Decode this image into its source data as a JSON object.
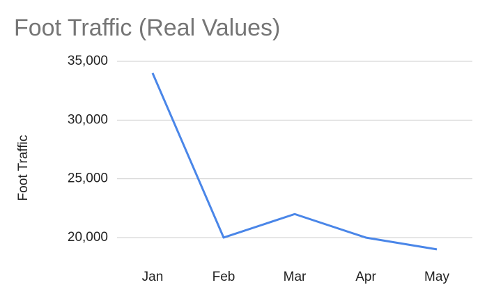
{
  "chart_data": {
    "type": "line",
    "title": "Foot Traffic (Real Values)",
    "y_label": "Foot Traffic",
    "categories": [
      "Jan",
      "Feb",
      "Mar",
      "Apr",
      "May"
    ],
    "series": [
      {
        "name": "Foot Traffic",
        "color": "#4a86e8",
        "values": [
          34000,
          20000,
          22000,
          20000,
          19000
        ]
      }
    ],
    "ylim": [
      18000,
      35000
    ],
    "yticks": [
      {
        "value": 20000,
        "label": "20,000"
      },
      {
        "value": 25000,
        "label": "25,000"
      },
      {
        "value": 30000,
        "label": "30,000"
      },
      {
        "value": 35000,
        "label": "35,000"
      }
    ],
    "grid": true
  }
}
